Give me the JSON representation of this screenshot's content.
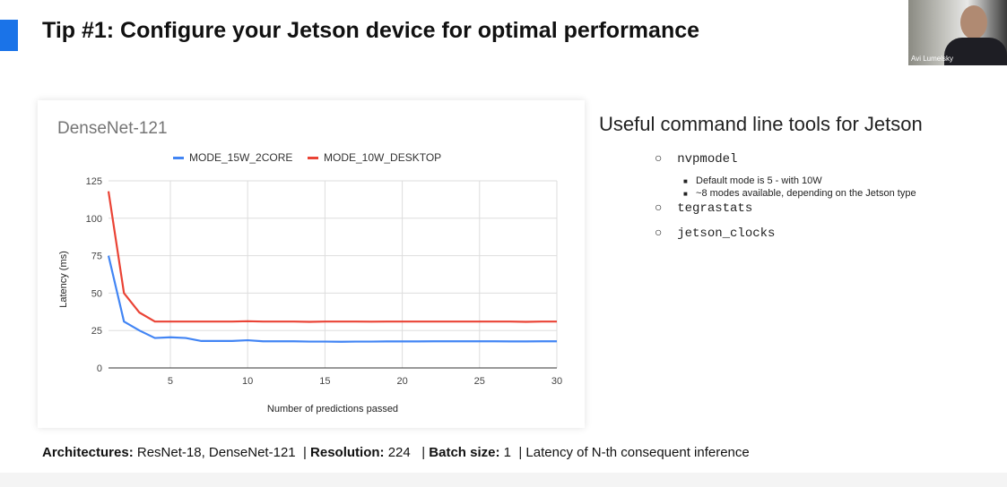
{
  "slide": {
    "title": "Tip #1: Configure your Jetson device for optimal performance",
    "accent_color": "#1a73e8"
  },
  "webcam": {
    "name": "Avi Lumelsky"
  },
  "tools": {
    "heading": "Useful command line tools for Jetson",
    "items": [
      {
        "bullet": "○",
        "label": "nvpmodel",
        "sub": [
          "Default mode is 5 - with 10W",
          "~8 modes available, depending on the Jetson type"
        ]
      },
      {
        "bullet": "○",
        "label": "tegrastats"
      },
      {
        "bullet": "○",
        "label": "jetson_clocks"
      }
    ],
    "sub_bullet": "■"
  },
  "footer": {
    "parts": [
      {
        "label": "Architectures:",
        "value": " ResNet-18, DenseNet-121  | "
      },
      {
        "label": "Resolution:",
        "value": " 224   | "
      },
      {
        "label": "Batch size:",
        "value": " 1  | Latency of N-th consequent inference"
      }
    ]
  },
  "chart_data": {
    "type": "line",
    "title": "DenseNet-121",
    "xlabel": "Number of predictions passed",
    "ylabel": "Latency (ms)",
    "xlim": [
      1,
      30
    ],
    "ylim": [
      0,
      125
    ],
    "xticks": [
      5,
      10,
      15,
      20,
      25,
      30
    ],
    "yticks": [
      0,
      25,
      50,
      75,
      100,
      125
    ],
    "grid": true,
    "legend": "top",
    "x": [
      1,
      2,
      3,
      4,
      5,
      6,
      7,
      8,
      9,
      10,
      11,
      12,
      13,
      14,
      15,
      16,
      17,
      18,
      19,
      20,
      21,
      22,
      23,
      24,
      25,
      26,
      27,
      28,
      29,
      30
    ],
    "series": [
      {
        "name": "MODE_15W_2CORE",
        "color": "#4285f4",
        "values": [
          75,
          31,
          25,
          20,
          20.5,
          20,
          18,
          18,
          18,
          18.5,
          17.8,
          17.8,
          17.8,
          17.6,
          17.6,
          17.5,
          17.6,
          17.6,
          17.7,
          17.7,
          17.7,
          17.8,
          17.8,
          17.8,
          17.8,
          17.8,
          17.7,
          17.7,
          17.8,
          17.8
        ]
      },
      {
        "name": "MODE_10W_DESKTOP",
        "color": "#ea4335",
        "values": [
          118,
          50,
          37,
          31,
          31,
          31,
          31,
          31,
          31,
          31.2,
          31,
          31,
          31,
          30.8,
          31,
          31,
          31,
          30.9,
          31,
          31,
          31,
          31,
          31,
          31,
          31,
          31,
          31,
          30.8,
          31,
          31
        ]
      }
    ]
  }
}
